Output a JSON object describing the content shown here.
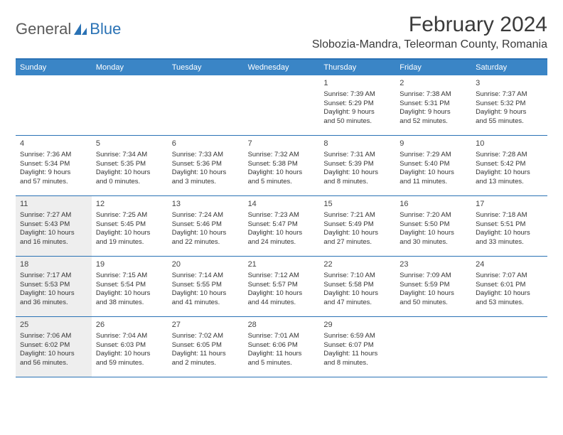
{
  "logo": {
    "text_general": "General",
    "text_blue": "Blue"
  },
  "header": {
    "month_title": "February 2024",
    "location": "Slobozia-Mandra, Teleorman County, Romania"
  },
  "colors": {
    "header_bg": "#3a85c6",
    "border": "#2a72b5",
    "shaded_bg": "#eeeeee",
    "text": "#333333",
    "logo_gray": "#5a5a5a",
    "logo_blue": "#2a72b5"
  },
  "day_names": [
    "Sunday",
    "Monday",
    "Tuesday",
    "Wednesday",
    "Thursday",
    "Friday",
    "Saturday"
  ],
  "weeks": [
    [
      {
        "empty": true
      },
      {
        "empty": true
      },
      {
        "empty": true
      },
      {
        "empty": true
      },
      {
        "num": "1",
        "sunrise": "Sunrise: 7:39 AM",
        "sunset": "Sunset: 5:29 PM",
        "daylight1": "Daylight: 9 hours",
        "daylight2": "and 50 minutes."
      },
      {
        "num": "2",
        "sunrise": "Sunrise: 7:38 AM",
        "sunset": "Sunset: 5:31 PM",
        "daylight1": "Daylight: 9 hours",
        "daylight2": "and 52 minutes."
      },
      {
        "num": "3",
        "sunrise": "Sunrise: 7:37 AM",
        "sunset": "Sunset: 5:32 PM",
        "daylight1": "Daylight: 9 hours",
        "daylight2": "and 55 minutes."
      }
    ],
    [
      {
        "num": "4",
        "sunrise": "Sunrise: 7:36 AM",
        "sunset": "Sunset: 5:34 PM",
        "daylight1": "Daylight: 9 hours",
        "daylight2": "and 57 minutes."
      },
      {
        "num": "5",
        "sunrise": "Sunrise: 7:34 AM",
        "sunset": "Sunset: 5:35 PM",
        "daylight1": "Daylight: 10 hours",
        "daylight2": "and 0 minutes."
      },
      {
        "num": "6",
        "sunrise": "Sunrise: 7:33 AM",
        "sunset": "Sunset: 5:36 PM",
        "daylight1": "Daylight: 10 hours",
        "daylight2": "and 3 minutes."
      },
      {
        "num": "7",
        "sunrise": "Sunrise: 7:32 AM",
        "sunset": "Sunset: 5:38 PM",
        "daylight1": "Daylight: 10 hours",
        "daylight2": "and 5 minutes."
      },
      {
        "num": "8",
        "sunrise": "Sunrise: 7:31 AM",
        "sunset": "Sunset: 5:39 PM",
        "daylight1": "Daylight: 10 hours",
        "daylight2": "and 8 minutes."
      },
      {
        "num": "9",
        "sunrise": "Sunrise: 7:29 AM",
        "sunset": "Sunset: 5:40 PM",
        "daylight1": "Daylight: 10 hours",
        "daylight2": "and 11 minutes."
      },
      {
        "num": "10",
        "sunrise": "Sunrise: 7:28 AM",
        "sunset": "Sunset: 5:42 PM",
        "daylight1": "Daylight: 10 hours",
        "daylight2": "and 13 minutes."
      }
    ],
    [
      {
        "num": "11",
        "shaded": true,
        "sunrise": "Sunrise: 7:27 AM",
        "sunset": "Sunset: 5:43 PM",
        "daylight1": "Daylight: 10 hours",
        "daylight2": "and 16 minutes."
      },
      {
        "num": "12",
        "sunrise": "Sunrise: 7:25 AM",
        "sunset": "Sunset: 5:45 PM",
        "daylight1": "Daylight: 10 hours",
        "daylight2": "and 19 minutes."
      },
      {
        "num": "13",
        "sunrise": "Sunrise: 7:24 AM",
        "sunset": "Sunset: 5:46 PM",
        "daylight1": "Daylight: 10 hours",
        "daylight2": "and 22 minutes."
      },
      {
        "num": "14",
        "sunrise": "Sunrise: 7:23 AM",
        "sunset": "Sunset: 5:47 PM",
        "daylight1": "Daylight: 10 hours",
        "daylight2": "and 24 minutes."
      },
      {
        "num": "15",
        "sunrise": "Sunrise: 7:21 AM",
        "sunset": "Sunset: 5:49 PM",
        "daylight1": "Daylight: 10 hours",
        "daylight2": "and 27 minutes."
      },
      {
        "num": "16",
        "sunrise": "Sunrise: 7:20 AM",
        "sunset": "Sunset: 5:50 PM",
        "daylight1": "Daylight: 10 hours",
        "daylight2": "and 30 minutes."
      },
      {
        "num": "17",
        "sunrise": "Sunrise: 7:18 AM",
        "sunset": "Sunset: 5:51 PM",
        "daylight1": "Daylight: 10 hours",
        "daylight2": "and 33 minutes."
      }
    ],
    [
      {
        "num": "18",
        "shaded": true,
        "sunrise": "Sunrise: 7:17 AM",
        "sunset": "Sunset: 5:53 PM",
        "daylight1": "Daylight: 10 hours",
        "daylight2": "and 36 minutes."
      },
      {
        "num": "19",
        "sunrise": "Sunrise: 7:15 AM",
        "sunset": "Sunset: 5:54 PM",
        "daylight1": "Daylight: 10 hours",
        "daylight2": "and 38 minutes."
      },
      {
        "num": "20",
        "sunrise": "Sunrise: 7:14 AM",
        "sunset": "Sunset: 5:55 PM",
        "daylight1": "Daylight: 10 hours",
        "daylight2": "and 41 minutes."
      },
      {
        "num": "21",
        "sunrise": "Sunrise: 7:12 AM",
        "sunset": "Sunset: 5:57 PM",
        "daylight1": "Daylight: 10 hours",
        "daylight2": "and 44 minutes."
      },
      {
        "num": "22",
        "sunrise": "Sunrise: 7:10 AM",
        "sunset": "Sunset: 5:58 PM",
        "daylight1": "Daylight: 10 hours",
        "daylight2": "and 47 minutes."
      },
      {
        "num": "23",
        "sunrise": "Sunrise: 7:09 AM",
        "sunset": "Sunset: 5:59 PM",
        "daylight1": "Daylight: 10 hours",
        "daylight2": "and 50 minutes."
      },
      {
        "num": "24",
        "sunrise": "Sunrise: 7:07 AM",
        "sunset": "Sunset: 6:01 PM",
        "daylight1": "Daylight: 10 hours",
        "daylight2": "and 53 minutes."
      }
    ],
    [
      {
        "num": "25",
        "shaded": true,
        "sunrise": "Sunrise: 7:06 AM",
        "sunset": "Sunset: 6:02 PM",
        "daylight1": "Daylight: 10 hours",
        "daylight2": "and 56 minutes."
      },
      {
        "num": "26",
        "sunrise": "Sunrise: 7:04 AM",
        "sunset": "Sunset: 6:03 PM",
        "daylight1": "Daylight: 10 hours",
        "daylight2": "and 59 minutes."
      },
      {
        "num": "27",
        "sunrise": "Sunrise: 7:02 AM",
        "sunset": "Sunset: 6:05 PM",
        "daylight1": "Daylight: 11 hours",
        "daylight2": "and 2 minutes."
      },
      {
        "num": "28",
        "sunrise": "Sunrise: 7:01 AM",
        "sunset": "Sunset: 6:06 PM",
        "daylight1": "Daylight: 11 hours",
        "daylight2": "and 5 minutes."
      },
      {
        "num": "29",
        "sunrise": "Sunrise: 6:59 AM",
        "sunset": "Sunset: 6:07 PM",
        "daylight1": "Daylight: 11 hours",
        "daylight2": "and 8 minutes."
      },
      {
        "empty": true
      },
      {
        "empty": true
      }
    ]
  ]
}
